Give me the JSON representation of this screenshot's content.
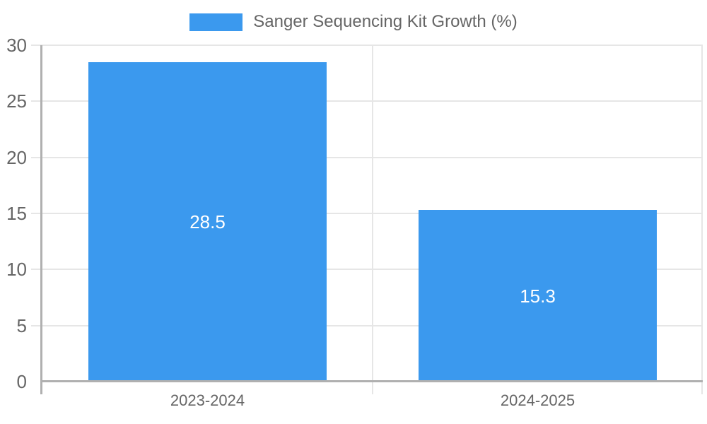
{
  "legend": {
    "label": "Sanger Sequencing Kit Growth (%)"
  },
  "chart_data": {
    "type": "bar",
    "categories": [
      "2023-2024",
      "2024-2025"
    ],
    "values": [
      28.5,
      15.3
    ],
    "series_name": "Sanger Sequencing Kit Growth (%)",
    "title": "",
    "xlabel": "",
    "ylabel": "",
    "ylim": [
      0,
      30
    ],
    "yticks": [
      0,
      5,
      10,
      15,
      20,
      25,
      30
    ],
    "grid": true,
    "legend_position": "top",
    "data_labels": [
      "28.5",
      "15.3"
    ],
    "ytick_labels": [
      "0",
      "5",
      "10",
      "15",
      "20",
      "25",
      "30"
    ]
  },
  "colors": {
    "bar": "#3b99ee",
    "grid": "#e6e6e6",
    "axis": "#b0b0b0",
    "tick_text": "#666666",
    "bar_label": "#ffffff"
  }
}
